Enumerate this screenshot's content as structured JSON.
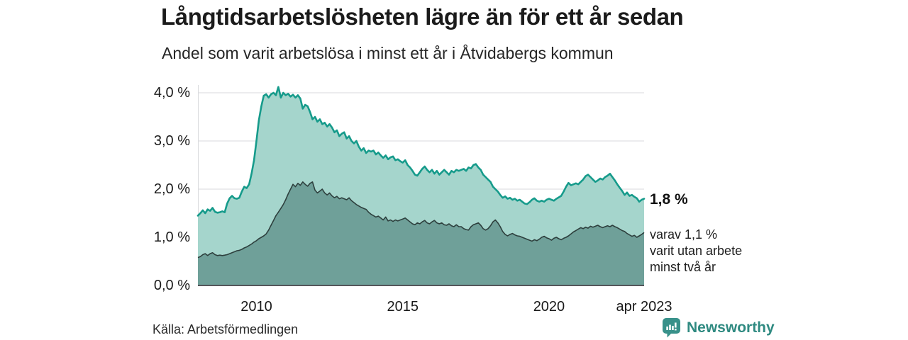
{
  "chart_data": {
    "type": "area",
    "title": "Långtidsarbetslösheten lägre än för ett år sedan",
    "subtitle": "Andel som varit arbetslösa i minst ett år i Åtvidabergs kommun",
    "x_start_year": 2008,
    "x_end_year": 2023.25,
    "x_ticks": [
      {
        "label": "2010",
        "year": 2010
      },
      {
        "label": "2015",
        "year": 2015
      },
      {
        "label": "2020",
        "year": 2020
      },
      {
        "label": "apr 2023",
        "year": 2023.25
      }
    ],
    "y_ticks": [
      {
        "label": "0,0 %",
        "value": 0
      },
      {
        "label": "1,0 %",
        "value": 1
      },
      {
        "label": "2,0 %",
        "value": 2
      },
      {
        "label": "3,0 %",
        "value": 3
      },
      {
        "label": "4,0 %",
        "value": 4
      }
    ],
    "ylim": [
      0,
      4.3
    ],
    "grid": true,
    "unit": "%",
    "legend_position": "annotations-right",
    "series": [
      {
        "name": "Andel arbetslösa minst ett år",
        "line_color": "#169b8b",
        "fill_color": "#a5d5cc",
        "end_value": 1.8,
        "values": [
          1.45,
          1.5,
          1.56,
          1.5,
          1.58,
          1.55,
          1.61,
          1.53,
          1.51,
          1.52,
          1.54,
          1.52,
          1.7,
          1.81,
          1.86,
          1.81,
          1.8,
          1.82,
          1.95,
          2.05,
          2.02,
          2.1,
          2.32,
          2.6,
          3.0,
          3.43,
          3.72,
          3.94,
          3.97,
          3.9,
          3.97,
          4.0,
          3.95,
          4.12,
          3.9,
          4.0,
          3.95,
          3.98,
          3.92,
          3.96,
          3.9,
          3.95,
          3.88,
          3.67,
          3.75,
          3.72,
          3.6,
          3.45,
          3.5,
          3.4,
          3.45,
          3.35,
          3.38,
          3.3,
          3.35,
          3.28,
          3.18,
          3.22,
          3.1,
          3.15,
          3.18,
          3.05,
          3.1,
          3.0,
          2.95,
          3.0,
          2.88,
          2.8,
          2.85,
          2.75,
          2.8,
          2.78,
          2.8,
          2.72,
          2.76,
          2.7,
          2.65,
          2.7,
          2.62,
          2.66,
          2.68,
          2.6,
          2.62,
          2.58,
          2.55,
          2.6,
          2.5,
          2.45,
          2.38,
          2.3,
          2.28,
          2.35,
          2.42,
          2.47,
          2.4,
          2.35,
          2.4,
          2.32,
          2.38,
          2.3,
          2.35,
          2.4,
          2.35,
          2.3,
          2.38,
          2.35,
          2.4,
          2.38,
          2.4,
          2.42,
          2.38,
          2.45,
          2.43,
          2.5,
          2.52,
          2.45,
          2.4,
          2.3,
          2.25,
          2.2,
          2.15,
          2.05,
          2.0,
          1.95,
          1.88,
          1.82,
          1.85,
          1.8,
          1.82,
          1.78,
          1.8,
          1.76,
          1.78,
          1.74,
          1.7,
          1.69,
          1.73,
          1.78,
          1.81,
          1.76,
          1.74,
          1.76,
          1.74,
          1.78,
          1.8,
          1.78,
          1.76,
          1.8,
          1.83,
          1.86,
          1.95,
          2.05,
          2.13,
          2.08,
          2.1,
          2.12,
          2.1,
          2.15,
          2.2,
          2.27,
          2.3,
          2.25,
          2.2,
          2.15,
          2.18,
          2.22,
          2.2,
          2.25,
          2.28,
          2.32,
          2.25,
          2.18,
          2.1,
          2.03,
          1.96,
          1.88,
          1.93,
          1.86,
          1.88,
          1.84,
          1.81,
          1.74,
          1.78,
          1.8
        ]
      },
      {
        "name": "Andel arbetslösa minst två år",
        "line_color": "#2e403e",
        "fill_color": "#6fa099",
        "end_value": 1.1,
        "values": [
          0.58,
          0.6,
          0.64,
          0.66,
          0.62,
          0.66,
          0.68,
          0.64,
          0.62,
          0.63,
          0.62,
          0.63,
          0.64,
          0.66,
          0.68,
          0.7,
          0.72,
          0.73,
          0.75,
          0.78,
          0.8,
          0.83,
          0.86,
          0.9,
          0.93,
          0.97,
          1.0,
          1.03,
          1.07,
          1.15,
          1.25,
          1.35,
          1.45,
          1.52,
          1.6,
          1.68,
          1.78,
          1.9,
          2.0,
          2.1,
          2.05,
          2.12,
          2.08,
          2.15,
          2.1,
          2.06,
          2.12,
          2.15,
          1.98,
          1.92,
          1.96,
          2.0,
          1.92,
          1.88,
          1.92,
          1.86,
          1.82,
          1.85,
          1.8,
          1.82,
          1.8,
          1.78,
          1.82,
          1.76,
          1.72,
          1.68,
          1.65,
          1.62,
          1.6,
          1.58,
          1.52,
          1.48,
          1.45,
          1.42,
          1.44,
          1.4,
          1.36,
          1.42,
          1.34,
          1.36,
          1.33,
          1.36,
          1.34,
          1.36,
          1.38,
          1.4,
          1.36,
          1.32,
          1.28,
          1.26,
          1.3,
          1.28,
          1.32,
          1.35,
          1.3,
          1.28,
          1.32,
          1.35,
          1.3,
          1.28,
          1.3,
          1.26,
          1.25,
          1.28,
          1.24,
          1.22,
          1.26,
          1.22,
          1.22,
          1.18,
          1.16,
          1.15,
          1.22,
          1.26,
          1.28,
          1.3,
          1.25,
          1.18,
          1.15,
          1.18,
          1.24,
          1.32,
          1.36,
          1.3,
          1.22,
          1.12,
          1.06,
          1.03,
          1.06,
          1.08,
          1.05,
          1.03,
          1.02,
          1.0,
          0.98,
          0.96,
          0.94,
          0.92,
          0.95,
          0.93,
          0.96,
          1.0,
          1.02,
          0.99,
          0.97,
          0.94,
          0.98,
          1.0,
          0.97,
          0.95,
          0.98,
          1.0,
          1.03,
          1.07,
          1.11,
          1.14,
          1.17,
          1.2,
          1.18,
          1.21,
          1.19,
          1.23,
          1.21,
          1.23,
          1.25,
          1.22,
          1.2,
          1.22,
          1.24,
          1.22,
          1.25,
          1.22,
          1.2,
          1.17,
          1.14,
          1.12,
          1.08,
          1.05,
          1.02,
          1.04,
          1.0,
          1.03,
          1.06,
          1.1
        ]
      }
    ]
  },
  "annotations": {
    "total_label": "1,8 %",
    "subset_label": "varav 1,1 %\nvarit utan arbete\nminst två år"
  },
  "source_label": "Källa: Arbetsförmedlingen",
  "logo": {
    "text": "Newsworthy",
    "color": "#2f8a81",
    "icon_color": "#38918a"
  },
  "colors": {
    "background": "#ffffff",
    "grid": "#d9dadd",
    "zero_axis": "#54565a",
    "title_text": "#1b1b1b",
    "tick_text": "#1a1a1a"
  }
}
